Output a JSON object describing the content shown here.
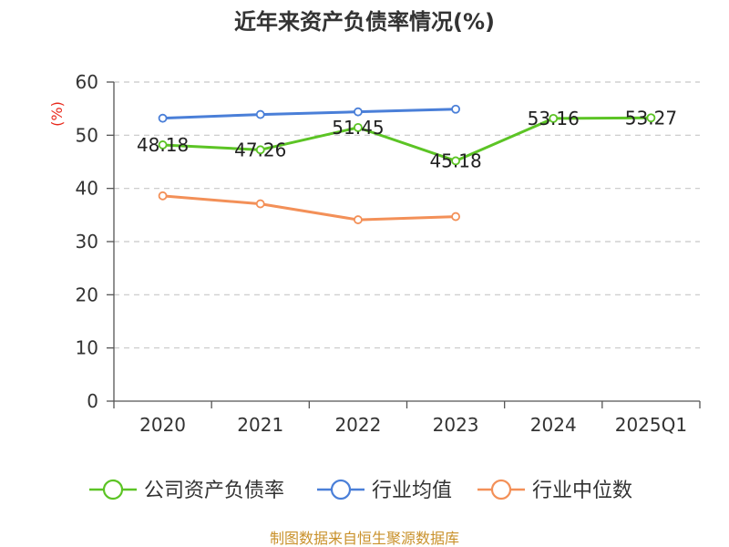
{
  "chart_data": {
    "type": "line",
    "title": "近年来资产负债率情况(%)",
    "ylabel": "(%)",
    "categories": [
      "2020",
      "2021",
      "2022",
      "2023",
      "2024",
      "2025Q1"
    ],
    "ylim": [
      0,
      60
    ],
    "yticks": [
      0,
      10,
      20,
      30,
      40,
      50,
      60
    ],
    "grid": true,
    "legend_position": "bottom",
    "series": [
      {
        "name": "公司资产负债率",
        "color": "#5cc425",
        "values": [
          48.18,
          47.26,
          51.45,
          45.18,
          53.16,
          53.27
        ],
        "labels": [
          "48.18",
          "47.26",
          "51.45",
          "45.18",
          "53.16",
          "53.27"
        ]
      },
      {
        "name": "行业均值",
        "color": "#4a7fd8",
        "values": [
          53.2,
          53.9,
          54.4,
          54.9,
          null,
          null
        ]
      },
      {
        "name": "行业中位数",
        "color": "#f39058",
        "values": [
          38.6,
          37.1,
          34.1,
          34.7,
          null,
          null
        ]
      }
    ]
  },
  "source": "制图数据来自恒生聚源数据库"
}
